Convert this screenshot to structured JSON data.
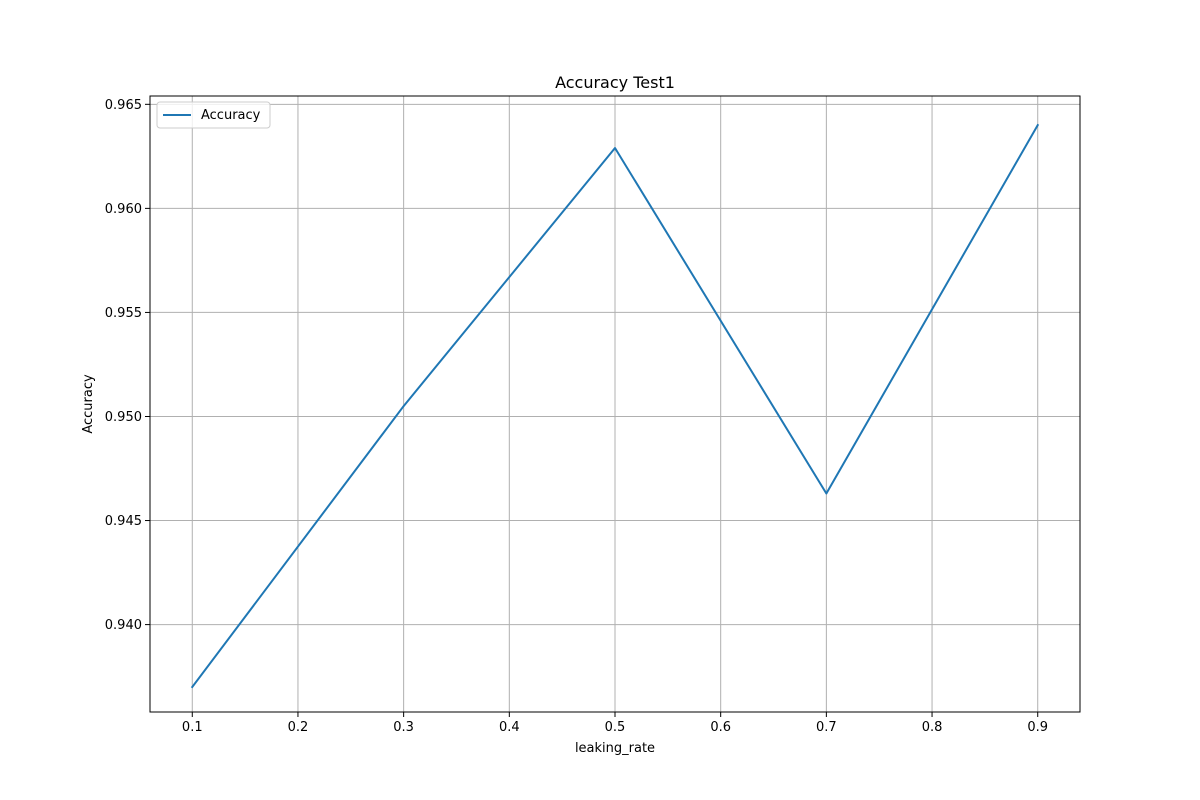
{
  "chart_data": {
    "type": "line",
    "title": "Accuracy Test1",
    "xlabel": "leaking_rate",
    "ylabel": "Accuracy",
    "x": [
      0.1,
      0.3,
      0.5,
      0.7,
      0.9
    ],
    "series": [
      {
        "name": "Accuracy",
        "values": [
          0.937,
          0.9505,
          0.9629,
          0.9463,
          0.964
        ],
        "color": "#1f77b4"
      }
    ],
    "xticks": [
      "0.1",
      "0.2",
      "0.3",
      "0.4",
      "0.5",
      "0.6",
      "0.7",
      "0.8",
      "0.9"
    ],
    "xtick_values": [
      0.1,
      0.2,
      0.3,
      0.4,
      0.5,
      0.6,
      0.7,
      0.8,
      0.9
    ],
    "yticks": [
      "0.940",
      "0.945",
      "0.950",
      "0.955",
      "0.960",
      "0.965"
    ],
    "ytick_values": [
      0.94,
      0.945,
      0.95,
      0.955,
      0.96,
      0.965
    ],
    "xlim": [
      0.06,
      0.94
    ],
    "ylim": [
      0.9358,
      0.9654
    ],
    "grid": true,
    "legend_position": "top-left",
    "grid_color": "#b0b0b0",
    "axis_color": "#000000"
  }
}
